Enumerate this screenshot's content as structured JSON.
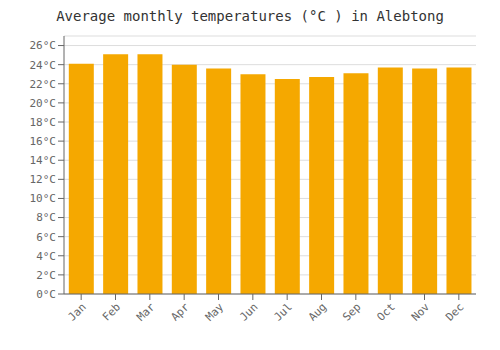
{
  "chart_data": {
    "type": "bar",
    "title": "Average monthly temperatures (°C ) in Alebtong",
    "categories": [
      "Jan",
      "Feb",
      "Mar",
      "Apr",
      "May",
      "Jun",
      "Jul",
      "Aug",
      "Sep",
      "Oct",
      "Nov",
      "Dec"
    ],
    "values": [
      24.1,
      25.1,
      25.1,
      24.0,
      23.6,
      23.0,
      22.5,
      22.7,
      23.1,
      23.7,
      23.6,
      23.7
    ],
    "color": "#F5A800",
    "ylim": [
      0,
      27
    ],
    "yticks": [
      {
        "value": 0,
        "label": "0°C"
      },
      {
        "value": 2,
        "label": "2°C"
      },
      {
        "value": 4,
        "label": "4°C"
      },
      {
        "value": 6,
        "label": "6°C"
      },
      {
        "value": 8,
        "label": "8°C"
      },
      {
        "value": 10,
        "label": "10°C"
      },
      {
        "value": 12,
        "label": "12°C"
      },
      {
        "value": 14,
        "label": "14°C"
      },
      {
        "value": 16,
        "label": "16°C"
      },
      {
        "value": 18,
        "label": "18°C"
      },
      {
        "value": 20,
        "label": "20°C"
      },
      {
        "value": 22,
        "label": "22°C"
      },
      {
        "value": 24,
        "label": "24°C"
      },
      {
        "value": 26,
        "label": "26°C"
      }
    ],
    "grid": true
  }
}
